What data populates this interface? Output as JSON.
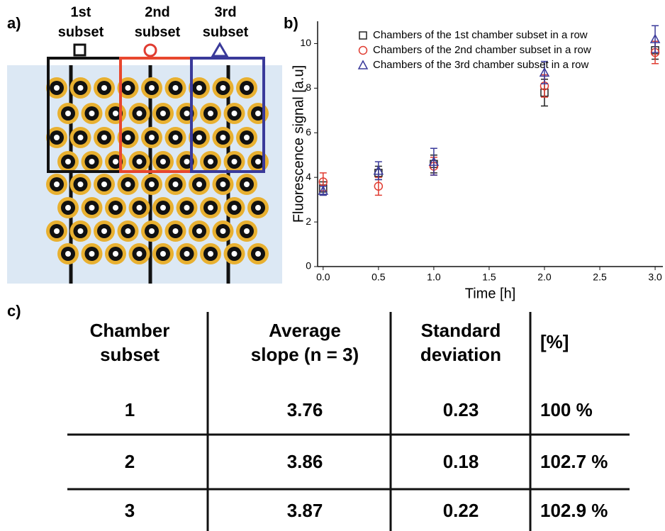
{
  "panel_labels": {
    "a": "a)",
    "b": "b)",
    "c": "c)"
  },
  "subsets": [
    {
      "label": [
        "1st",
        "subset"
      ]
    },
    {
      "label": [
        "2nd",
        "subset"
      ]
    },
    {
      "label": [
        "3rd",
        "subset"
      ]
    }
  ],
  "chart_data": {
    "type": "scatter",
    "xlabel": "Time [h]",
    "ylabel": "Fluorescence signal [a.u]",
    "x": [
      0,
      0.5,
      1,
      2,
      3
    ],
    "series": [
      {
        "name": "Chambers of the 1st chamber subset in a row",
        "color": "#222222",
        "marker": "square",
        "values": [
          3.5,
          4.2,
          4.6,
          7.8,
          9.7
        ],
        "errors": [
          0.3,
          0.3,
          0.4,
          0.6,
          0.4
        ]
      },
      {
        "name": "Chambers of the 2nd chamber subset in a row",
        "color": "#e03c31",
        "marker": "circle",
        "values": [
          3.8,
          3.6,
          4.5,
          8.1,
          9.6
        ],
        "errors": [
          0.4,
          0.4,
          0.4,
          0.5,
          0.5
        ]
      },
      {
        "name": "Chambers of the 3rd chamber  subset in a row",
        "color": "#3a3a9a",
        "marker": "triangle",
        "values": [
          3.4,
          4.3,
          4.7,
          8.7,
          10.2
        ],
        "errors": [
          0.2,
          0.4,
          0.6,
          0.5,
          0.6
        ]
      }
    ],
    "xlim": [
      -0.05,
      3.07
    ],
    "ylim": [
      0,
      11
    ],
    "xticks": [
      {
        "value": 0,
        "label": "0.0"
      },
      0.5,
      {
        "value": 1,
        "label": "1.0"
      },
      1.5,
      {
        "value": 2,
        "label": "2.0"
      },
      2.5,
      {
        "value": 3,
        "label": "3.0"
      }
    ],
    "yticks": [
      0,
      2,
      4,
      6,
      8,
      10
    ],
    "grid": false,
    "legend": "top-right"
  },
  "table": {
    "header": [
      [
        "Chamber",
        "subset"
      ],
      [
        "Average",
        "slope (n = 3)"
      ],
      [
        "Standard",
        "deviation"
      ],
      [
        "[%]"
      ]
    ],
    "rows": [
      [
        "1",
        "3.76",
        "0.23",
        "100 %"
      ],
      [
        "2",
        "3.86",
        "0.18",
        "102.7 %"
      ],
      [
        "3",
        "3.87",
        "0.22",
        "102.9 %"
      ]
    ]
  }
}
